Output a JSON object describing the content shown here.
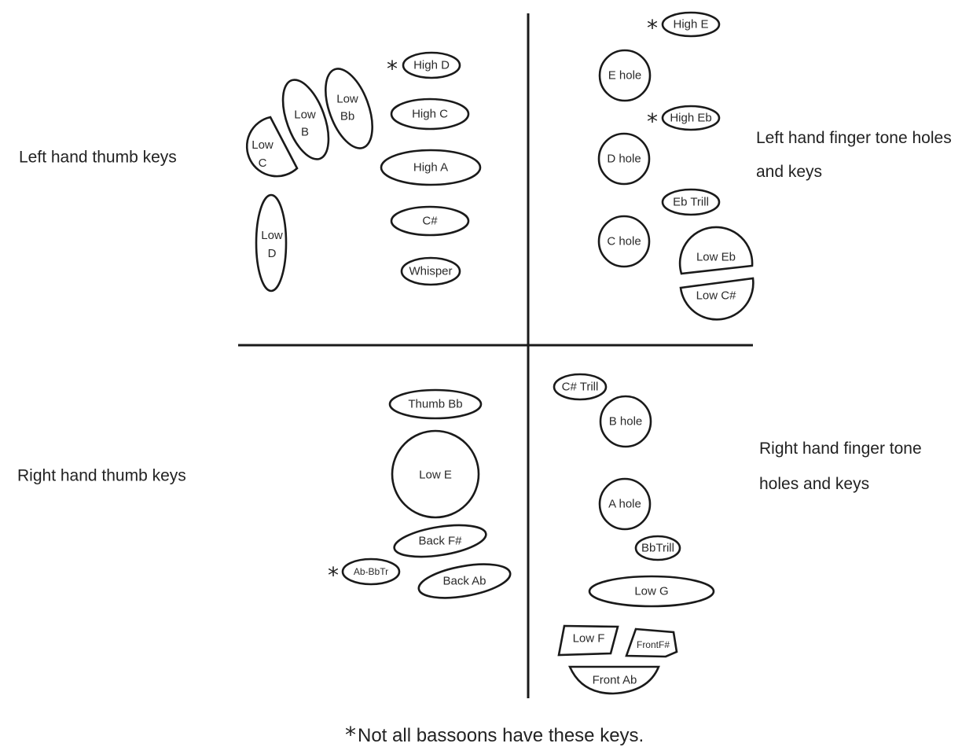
{
  "sections": {
    "left_thumb": [
      "Left hand thumb keys"
    ],
    "left_finger": [
      "Left hand finger tone holes",
      "and keys"
    ],
    "right_thumb": [
      "Right hand thumb keys"
    ],
    "right_finger": [
      "Right hand finger tone",
      "holes and keys"
    ]
  },
  "keys": {
    "high_d": [
      "High D"
    ],
    "high_c": [
      "High C"
    ],
    "high_a": [
      "High A"
    ],
    "c_sharp": [
      "C#"
    ],
    "whisper": [
      "Whisper"
    ],
    "low_c": [
      "Low",
      "C"
    ],
    "low_b": [
      "Low",
      "B"
    ],
    "low_bb": [
      "Low",
      "Bb"
    ],
    "low_d": [
      "Low",
      "D"
    ],
    "high_e": [
      "High E"
    ],
    "e_hole": [
      "E hole"
    ],
    "high_eb": [
      "High Eb"
    ],
    "d_hole": [
      "D hole"
    ],
    "eb_trill": [
      "Eb Trill"
    ],
    "c_hole": [
      "C hole"
    ],
    "low_eb": [
      "Low Eb"
    ],
    "low_c_sharp": [
      "Low C#"
    ],
    "thumb_bb": [
      "Thumb Bb"
    ],
    "low_e": [
      "Low E"
    ],
    "back_f_sharp": [
      "Back F#"
    ],
    "ab_bbtr": [
      "Ab-BbTr"
    ],
    "back_ab": [
      "Back Ab"
    ],
    "c_sharp_trill": [
      "C# Trill"
    ],
    "b_hole": [
      "B hole"
    ],
    "a_hole": [
      "A hole"
    ],
    "bb_trill": [
      "BbTrill"
    ],
    "low_g": [
      "Low G"
    ],
    "low_f": [
      "Low F"
    ],
    "front_f_sharp": [
      "FrontF#"
    ],
    "front_ab": [
      "Front Ab"
    ]
  },
  "footnote": {
    "star": "*",
    "text": "Not all bassoons have these keys."
  }
}
